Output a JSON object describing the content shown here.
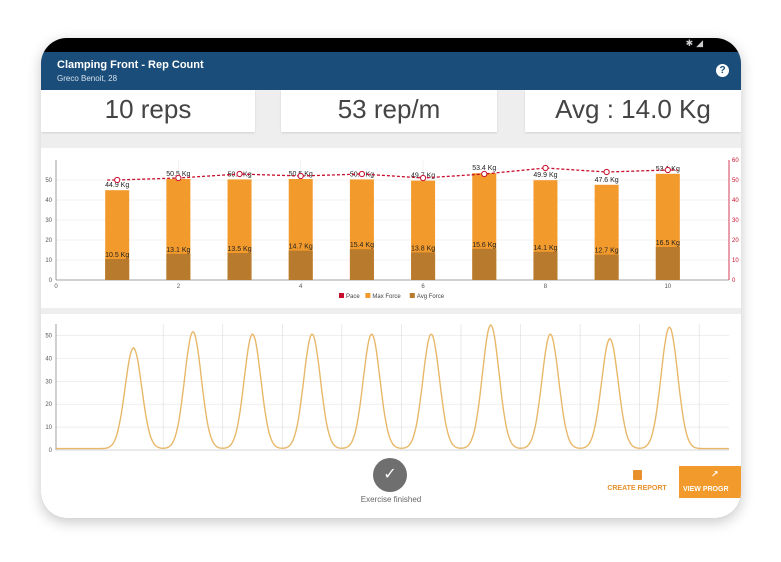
{
  "app": {
    "title": "Clamping Front - Rep Count",
    "subtitle": "Greco Benoit, 28"
  },
  "stats": {
    "reps": "10 reps",
    "rate": "53 rep/m",
    "avg": "Avg : 14.0 Kg"
  },
  "chart_data": [
    {
      "type": "bar",
      "x": [
        1,
        2,
        3,
        4,
        5,
        6,
        7,
        8,
        9,
        10
      ],
      "xticks": [
        "0",
        "2",
        "4",
        "6",
        "8",
        "10"
      ],
      "xlim": [
        0,
        11
      ],
      "ylim": [
        0,
        60
      ],
      "yticks": [
        "0",
        "10",
        "20",
        "30",
        "40",
        "50"
      ],
      "yticks_right": [
        "0",
        "10",
        "20",
        "30",
        "40",
        "50",
        "60"
      ],
      "series": [
        {
          "name": "Max Force",
          "values": [
            44.9,
            50.5,
            50.3,
            50.5,
            50.3,
            49.7,
            53.4,
            49.9,
            47.6,
            53.1
          ],
          "labels": [
            "44.9 Kg",
            "50.5 Kg",
            "50.3 Kg",
            "50.5 Kg",
            "50.3 Kg",
            "49.7 Kg",
            "53.4 Kg",
            "49.9 Kg",
            "47.6 Kg",
            "53.1 Kg"
          ],
          "color": "#f39a2c"
        },
        {
          "name": "Avg Force",
          "values": [
            10.5,
            13.1,
            13.5,
            14.7,
            15.4,
            13.8,
            15.6,
            14.1,
            12.7,
            16.5
          ],
          "labels": [
            "10.5 Kg",
            "13.1 Kg",
            "13.5 Kg",
            "14.7 Kg",
            "15.4 Kg",
            "13.8 Kg",
            "15.6 Kg",
            "14.1 Kg",
            "12.7 Kg",
            "16.5 Kg"
          ],
          "color": "#b87a2d"
        },
        {
          "name": "Pace",
          "values": [
            50,
            51,
            53,
            52,
            53,
            51,
            53,
            56,
            54,
            55
          ],
          "color": "#c8102e"
        }
      ],
      "grid": true,
      "legend": "bottom-center"
    },
    {
      "type": "line",
      "ylim": [
        0,
        55
      ],
      "yticks": [
        "0",
        "10",
        "20",
        "30",
        "40",
        "50"
      ],
      "peaks": [
        {
          "center": 1.3,
          "value": 44
        },
        {
          "center": 2.3,
          "value": 51
        },
        {
          "center": 3.3,
          "value": 50
        },
        {
          "center": 4.3,
          "value": 50
        },
        {
          "center": 5.3,
          "value": 50
        },
        {
          "center": 6.3,
          "value": 50
        },
        {
          "center": 7.3,
          "value": 54
        },
        {
          "center": 8.3,
          "value": 50
        },
        {
          "center": 9.3,
          "value": 48
        },
        {
          "center": 10.3,
          "value": 53
        }
      ],
      "xlim": [
        0,
        11.3
      ],
      "color": "#e8b86a",
      "grid": true
    }
  ],
  "actions": {
    "finish_icon": "check-icon",
    "finish_label": "Exercise finished",
    "create_report": "CREATE REPORT",
    "view_progress": "VIEW PROGR"
  },
  "colors": {
    "appbar": "#1a4d7a",
    "accent": "#f39a2c"
  }
}
